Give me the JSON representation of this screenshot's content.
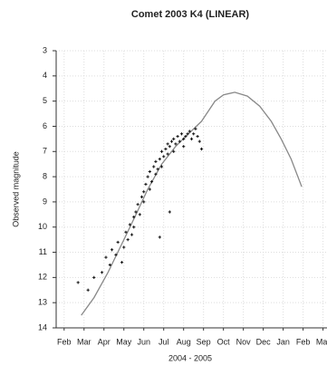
{
  "chart_data": {
    "type": "scatter",
    "title": "Comet 2003 K4 (LINEAR)",
    "ylabel": "Observed magnitude",
    "xlabel": "2004 - 2005",
    "y_inverted": true,
    "grid": true,
    "ylim": [
      3,
      14
    ],
    "yticks": [
      3,
      4,
      5,
      6,
      7,
      8,
      9,
      10,
      11,
      12,
      13,
      14
    ],
    "xlim": [
      -0.4,
      13.2
    ],
    "xticks": [
      {
        "value": 0,
        "label": "Feb"
      },
      {
        "value": 1,
        "label": "Mar"
      },
      {
        "value": 2,
        "label": "Apr"
      },
      {
        "value": 3,
        "label": "May"
      },
      {
        "value": 4,
        "label": "Jun"
      },
      {
        "value": 5,
        "label": "Jul"
      },
      {
        "value": 6,
        "label": "Aug"
      },
      {
        "value": 7,
        "label": "Sep"
      },
      {
        "value": 8,
        "label": "Oct"
      },
      {
        "value": 9,
        "label": "Nov"
      },
      {
        "value": 10,
        "label": "Dec"
      },
      {
        "value": 11,
        "label": "Jan"
      },
      {
        "value": 12,
        "label": "Feb"
      },
      {
        "value": 13,
        "label": "Mar"
      }
    ],
    "series": [
      {
        "type": "line",
        "color": "#888888",
        "x": [
          0.86,
          1.5,
          2.2,
          3,
          3.55,
          4.2,
          4.9,
          5.6,
          6.24,
          6.9,
          7.58,
          8.0,
          8.57,
          9.2,
          9.82,
          10.4,
          10.9,
          11.4,
          11.93
        ],
        "values": [
          13.5,
          12.8,
          11.8,
          10.5,
          9.6,
          8.5,
          7.5,
          6.8,
          6.3,
          5.8,
          5.0,
          4.75,
          4.65,
          4.8,
          5.2,
          5.8,
          6.5,
          7.3,
          8.4
        ]
      },
      {
        "type": "scatter",
        "color": "#111111",
        "x": [
          0.7,
          1.2,
          1.5,
          1.9,
          2.1,
          2.3,
          2.4,
          2.6,
          2.7,
          2.9,
          3.0,
          3.1,
          3.2,
          3.3,
          3.4,
          3.5,
          3.5,
          3.6,
          3.7,
          3.8,
          3.9,
          4.0,
          4.0,
          4.1,
          4.2,
          4.3,
          4.3,
          4.4,
          4.5,
          4.6,
          4.6,
          4.7,
          4.8,
          4.9,
          4.9,
          5.0,
          5.1,
          5.2,
          5.2,
          5.3,
          5.4,
          5.5,
          5.5,
          5.6,
          5.7,
          5.8,
          5.9,
          6.0,
          6.0,
          6.1,
          6.2,
          6.3,
          6.4,
          6.5,
          6.6,
          6.7,
          6.8,
          6.9,
          5.3,
          4.8
        ],
        "values": [
          12.2,
          12.5,
          12.0,
          11.8,
          11.2,
          11.5,
          10.9,
          11.1,
          10.6,
          11.4,
          10.8,
          10.2,
          10.5,
          9.9,
          10.3,
          9.6,
          10.0,
          9.4,
          9.1,
          9.5,
          8.8,
          8.6,
          9.0,
          8.3,
          8.0,
          8.5,
          7.8,
          8.2,
          7.6,
          7.9,
          7.4,
          7.7,
          7.3,
          7.0,
          7.6,
          7.2,
          6.9,
          7.1,
          6.7,
          6.8,
          6.6,
          7.0,
          6.5,
          6.7,
          6.4,
          6.6,
          6.3,
          6.5,
          6.8,
          6.4,
          6.3,
          6.2,
          6.5,
          6.3,
          6.1,
          6.4,
          6.6,
          6.9,
          9.4,
          10.4
        ]
      }
    ]
  }
}
